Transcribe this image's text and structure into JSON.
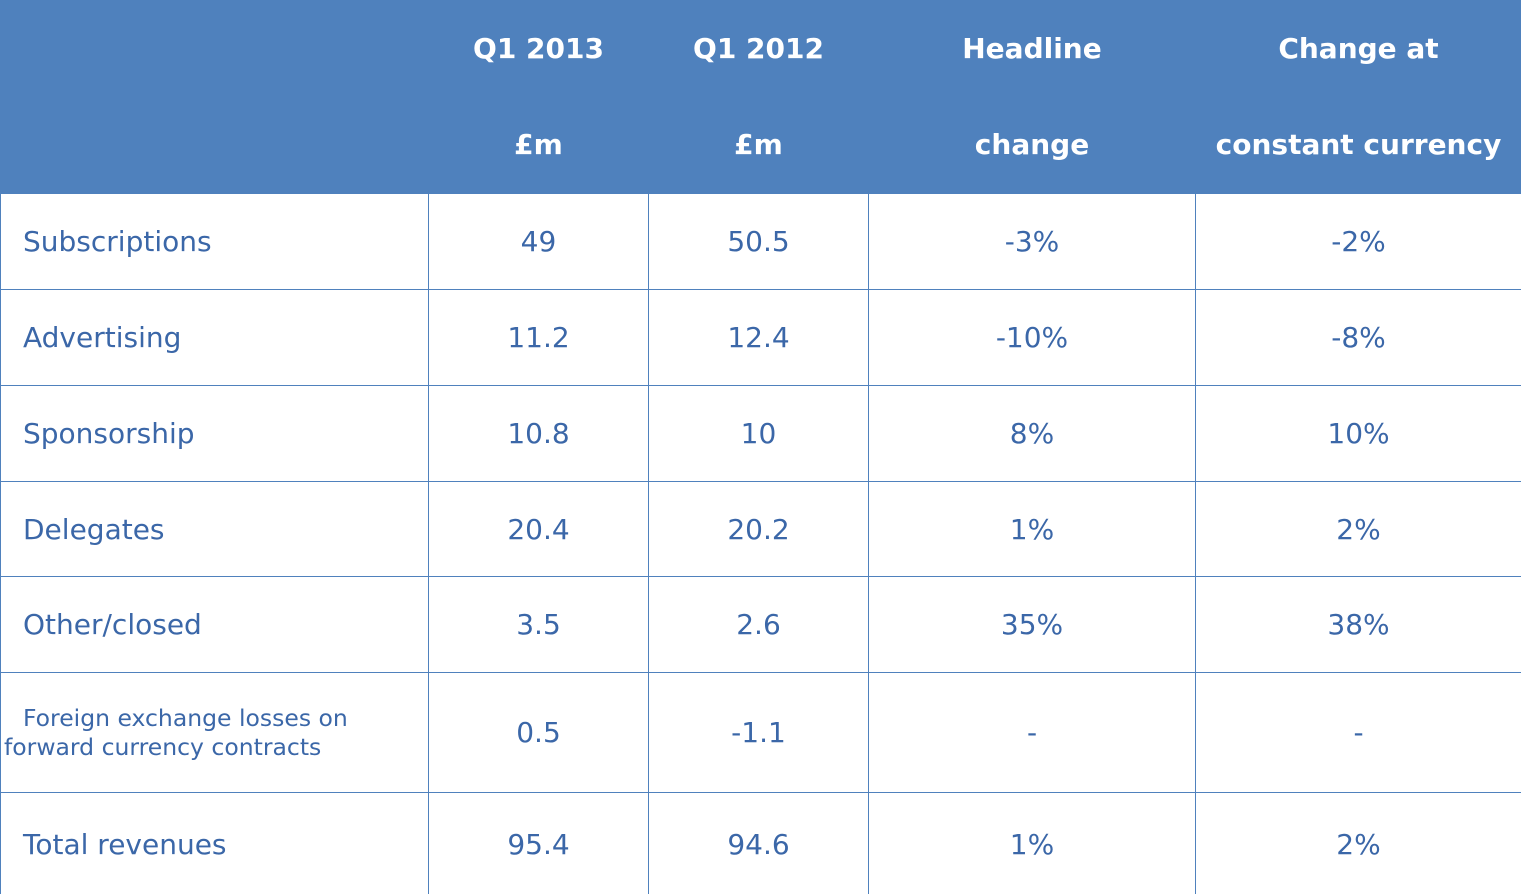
{
  "table": {
    "columns": [
      {
        "line1": "Q1 2013",
        "line2": "£m"
      },
      {
        "line1": "Q1 2012",
        "line2": "£m"
      },
      {
        "line1": "Headline",
        "line2": "change"
      },
      {
        "line1": "Change at",
        "line2": "constant currency"
      }
    ],
    "rows": [
      [
        "Subscriptions",
        "49",
        "50.5",
        "-3%",
        "-2%"
      ],
      [
        "Advertising",
        "11.2",
        "12.4",
        "-10%",
        "-8%"
      ],
      [
        "Sponsorship",
        "10.8",
        "10",
        "8%",
        "10%"
      ],
      [
        "Delegates",
        "20.4",
        "20.2",
        "1%",
        "2%"
      ],
      [
        "Other/closed",
        "3.5",
        "2.6",
        "35%",
        "38%"
      ],
      [
        "Foreign exchange losses on forward currency contracts",
        "0.5",
        "-1.1",
        "-",
        "-"
      ],
      [
        "Total revenues",
        "95.4",
        "94.6",
        "1%",
        "2%"
      ]
    ]
  }
}
